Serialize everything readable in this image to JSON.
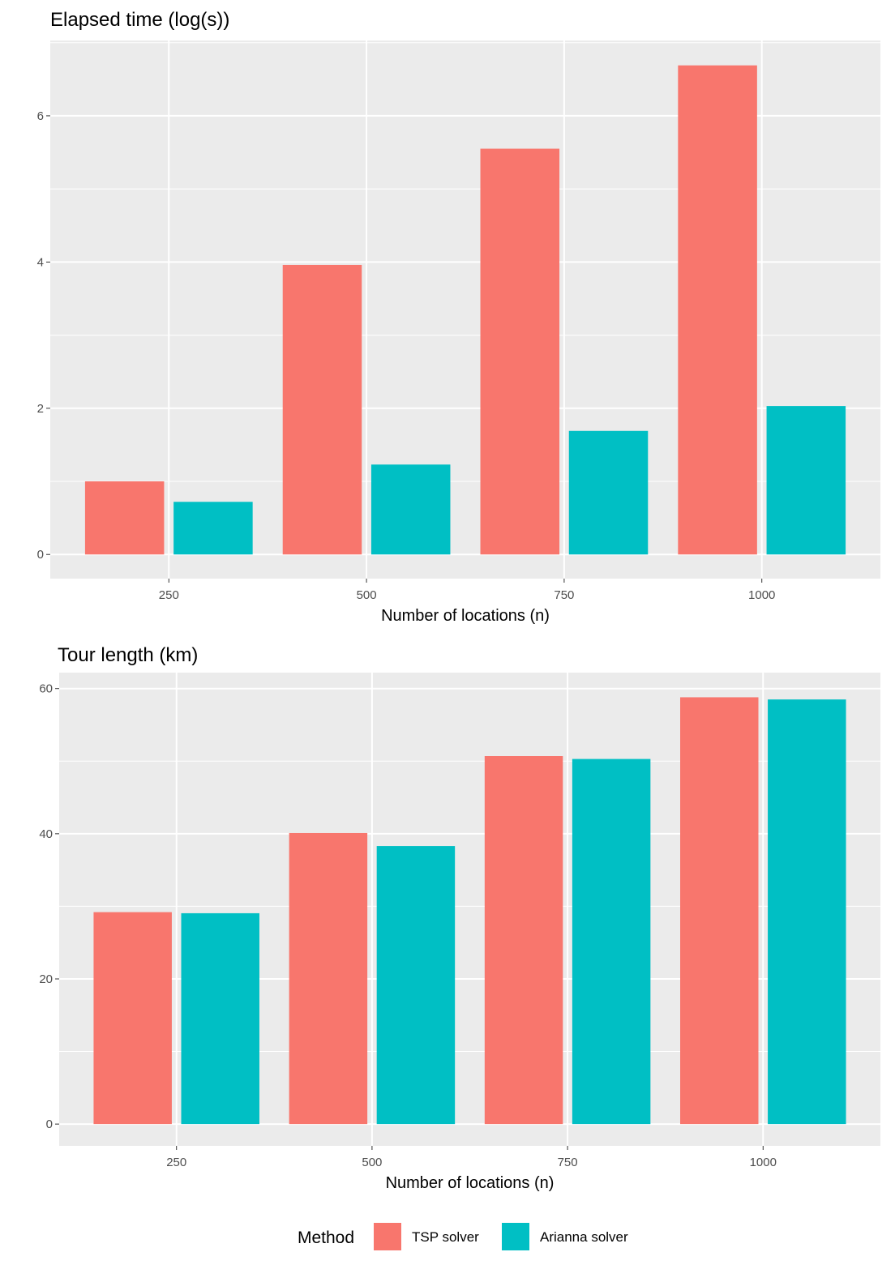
{
  "colors": {
    "TSP solver": "#F8766D",
    "Arianna solver": "#00BFC4",
    "panel_bg": "#EBEBEB",
    "grid": "#FFFFFF"
  },
  "legend": {
    "title": "Method",
    "placement": "bottom",
    "entries": [
      "TSP solver",
      "Arianna solver"
    ]
  },
  "chart_data": [
    {
      "type": "bar",
      "title": "Elapsed time (log(s))",
      "xlabel": "Number of locations (n)",
      "ylabel": "",
      "categories": [
        250,
        500,
        750,
        1000
      ],
      "xticks": [
        "250",
        "500",
        "750",
        "1000"
      ],
      "yticks": [
        "0",
        "2",
        "4",
        "6"
      ],
      "xlim": [
        100,
        1150
      ],
      "ylim": [
        -0.33,
        7.03
      ],
      "grid": true,
      "series": [
        {
          "name": "TSP solver",
          "values": [
            1.0,
            3.96,
            5.55,
            6.69
          ]
        },
        {
          "name": "Arianna solver",
          "values": [
            0.72,
            1.23,
            1.69,
            2.03
          ]
        }
      ]
    },
    {
      "type": "bar",
      "title": "Tour length (km)",
      "xlabel": "Number of locations (n)",
      "ylabel": "",
      "categories": [
        250,
        500,
        750,
        1000
      ],
      "xticks": [
        "250",
        "500",
        "750",
        "1000"
      ],
      "yticks": [
        "0",
        "20",
        "40",
        "60"
      ],
      "xlim": [
        100,
        1150
      ],
      "ylim": [
        -3.0,
        62.2
      ],
      "grid": true,
      "series": [
        {
          "name": "TSP solver",
          "values": [
            29.2,
            40.1,
            50.7,
            58.8
          ]
        },
        {
          "name": "Arianna solver",
          "values": [
            29.05,
            38.3,
            50.3,
            58.5
          ]
        }
      ]
    }
  ]
}
